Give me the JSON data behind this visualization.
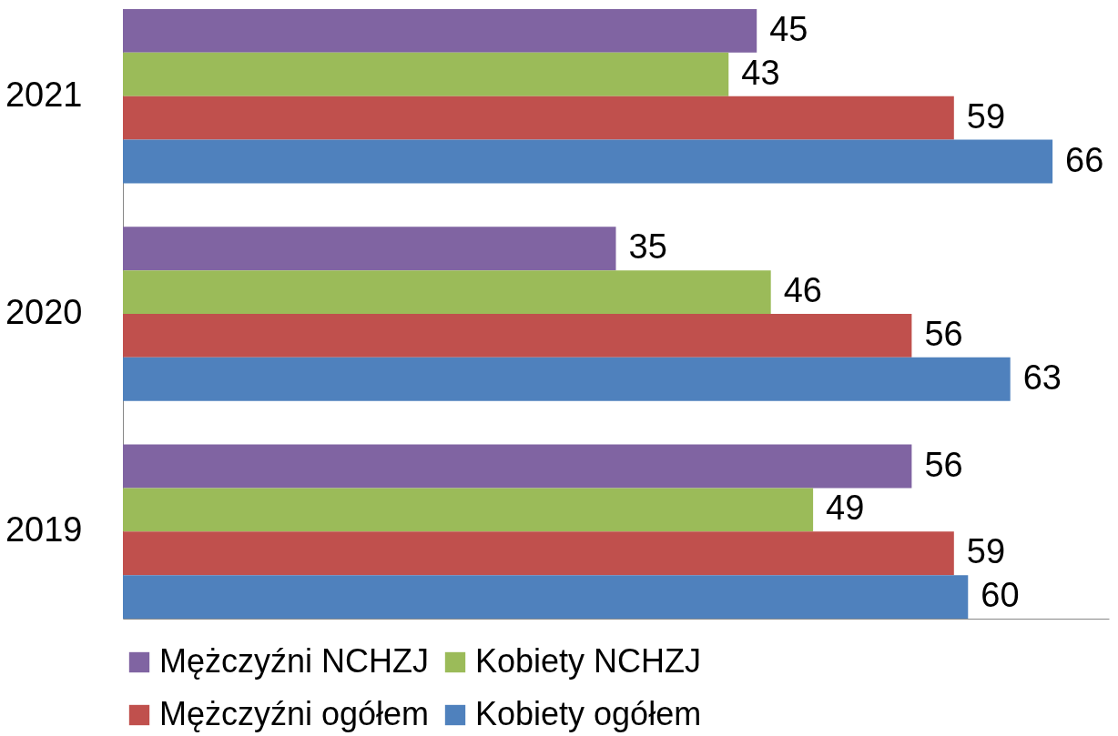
{
  "chart_data": {
    "type": "bar",
    "orientation": "horizontal",
    "categories": [
      "2021",
      "2020",
      "2019"
    ],
    "series": [
      {
        "name": "Mężczyźni NCHZJ",
        "color": "#8064a2",
        "values": [
          45,
          35,
          56
        ]
      },
      {
        "name": "Kobiety NCHZJ",
        "color": "#9bbb59",
        "values": [
          43,
          46,
          49
        ]
      },
      {
        "name": "Mężczyźni ogółem",
        "color": "#c0504d",
        "values": [
          59,
          56,
          59
        ]
      },
      {
        "name": "Kobiety ogółem",
        "color": "#4f81bd",
        "values": [
          66,
          63,
          60
        ]
      }
    ],
    "data_labels": true,
    "legend": "bottom",
    "grid": false,
    "tick_labels": "y"
  }
}
